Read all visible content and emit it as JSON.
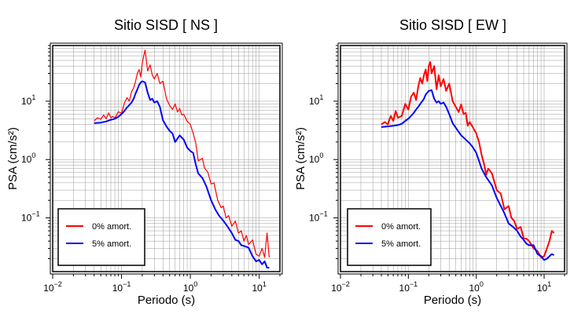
{
  "colors": {
    "no_damping": "#ff0000",
    "damped": "#0000ff",
    "grid": "#999999",
    "frame": "#000000"
  },
  "chart_data": [
    {
      "type": "line",
      "title": "Sitio SISD [ NS ]",
      "xlabel": "Periodo (s)",
      "ylabel": "PSA (cm/s²)",
      "x_scale": "log",
      "y_scale": "log",
      "xlim": [
        0.01,
        20
      ],
      "ylim": [
        0.012,
        90
      ],
      "x_ticks": [
        {
          "value": 0.01,
          "base": "10",
          "exp": "−2"
        },
        {
          "value": 0.1,
          "base": "10",
          "exp": "−1"
        },
        {
          "value": 1,
          "base": "10",
          "exp": "0"
        },
        {
          "value": 10,
          "base": "10",
          "exp": "1"
        }
      ],
      "y_ticks": [
        {
          "value": 0.1,
          "base": "10",
          "exp": "−1"
        },
        {
          "value": 1,
          "base": "10",
          "exp": "0"
        },
        {
          "value": 10,
          "base": "10",
          "exp": "1"
        }
      ],
      "grid": true,
      "legend_position": "bottom-left",
      "series": [
        {
          "name": "0% amort.",
          "color": "#ff0000",
          "x": [
            0.04,
            0.045,
            0.05,
            0.055,
            0.06,
            0.065,
            0.07,
            0.075,
            0.08,
            0.09,
            0.1,
            0.11,
            0.12,
            0.13,
            0.14,
            0.15,
            0.16,
            0.17,
            0.18,
            0.19,
            0.2,
            0.21,
            0.22,
            0.24,
            0.26,
            0.28,
            0.3,
            0.33,
            0.36,
            0.4,
            0.45,
            0.5,
            0.55,
            0.6,
            0.65,
            0.7,
            0.75,
            0.8,
            0.9,
            1.0,
            1.1,
            1.2,
            1.3,
            1.4,
            1.5,
            1.6,
            1.8,
            2.0,
            2.2,
            2.5,
            2.8,
            3.0,
            3.3,
            3.6,
            4.0,
            4.5,
            5.0,
            5.5,
            6.0,
            6.5,
            7.0,
            8.0,
            9.0,
            10.0,
            11.0,
            12.0,
            13.0,
            14.0
          ],
          "y": [
            4.6,
            5.2,
            4.9,
            5.8,
            5.0,
            6.3,
            5.2,
            5.5,
            5.1,
            6.6,
            6.2,
            9.3,
            11.5,
            10.0,
            14.5,
            17.0,
            22.0,
            30.0,
            35.0,
            26.0,
            45.0,
            60.0,
            75.0,
            33.0,
            42.0,
            28.0,
            24.0,
            30.0,
            20.0,
            22.0,
            11.0,
            8.5,
            7.2,
            9.0,
            6.5,
            7.5,
            5.8,
            6.0,
            4.5,
            4.0,
            2.8,
            1.9,
            0.95,
            1.0,
            1.05,
            0.72,
            0.6,
            0.38,
            0.4,
            0.2,
            0.15,
            0.16,
            0.1,
            0.11,
            0.072,
            0.088,
            0.055,
            0.06,
            0.04,
            0.05,
            0.035,
            0.042,
            0.024,
            0.022,
            0.03,
            0.021,
            0.055,
            0.021
          ]
        },
        {
          "name": "5% amort.",
          "color": "#0000ff",
          "x": [
            0.04,
            0.05,
            0.06,
            0.07,
            0.08,
            0.09,
            0.1,
            0.11,
            0.12,
            0.13,
            0.14,
            0.15,
            0.16,
            0.17,
            0.18,
            0.19,
            0.2,
            0.22,
            0.24,
            0.26,
            0.28,
            0.3,
            0.33,
            0.36,
            0.4,
            0.45,
            0.5,
            0.55,
            0.6,
            0.7,
            0.8,
            0.9,
            1.0,
            1.1,
            1.2,
            1.3,
            1.5,
            1.7,
            2.0,
            2.3,
            2.6,
            3.0,
            3.5,
            4.0,
            4.5,
            5.0,
            5.5,
            6.0,
            7.0,
            8.0,
            9.0,
            10.0,
            11.0,
            12.0,
            13.0,
            14.0
          ],
          "y": [
            4.2,
            4.3,
            4.5,
            4.8,
            5.0,
            5.4,
            6.0,
            6.8,
            7.8,
            8.6,
            9.5,
            11.0,
            13.5,
            16.0,
            19.0,
            21.0,
            22.0,
            21.0,
            14.0,
            10.5,
            11.0,
            9.5,
            10.0,
            8.0,
            4.7,
            3.7,
            3.1,
            2.8,
            2.0,
            2.6,
            2.2,
            1.6,
            1.4,
            1.3,
            0.82,
            0.58,
            0.48,
            0.35,
            0.2,
            0.14,
            0.11,
            0.09,
            0.07,
            0.055,
            0.042,
            0.04,
            0.034,
            0.033,
            0.031,
            0.022,
            0.018,
            0.019,
            0.016,
            0.018,
            0.014,
            0.014
          ]
        }
      ]
    },
    {
      "type": "line",
      "title": "Sitio SISD [ EW ]",
      "xlabel": "Periodo (s)",
      "ylabel": "PSA (cm/s²)",
      "x_scale": "log",
      "y_scale": "log",
      "xlim": [
        0.01,
        20
      ],
      "ylim": [
        0.012,
        90
      ],
      "x_ticks": [
        {
          "value": 0.01,
          "base": "10",
          "exp": "−2"
        },
        {
          "value": 0.1,
          "base": "10",
          "exp": "−1"
        },
        {
          "value": 1,
          "base": "10",
          "exp": "0"
        },
        {
          "value": 10,
          "base": "10",
          "exp": "1"
        }
      ],
      "y_ticks": [
        {
          "value": 0.1,
          "base": "10",
          "exp": "−1"
        },
        {
          "value": 1,
          "base": "10",
          "exp": "0"
        },
        {
          "value": 10,
          "base": "10",
          "exp": "1"
        }
      ],
      "grid": true,
      "legend_position": "bottom-left",
      "series": [
        {
          "name": "0% amort.",
          "color": "#ff0000",
          "x": [
            0.04,
            0.045,
            0.05,
            0.055,
            0.06,
            0.065,
            0.07,
            0.08,
            0.09,
            0.1,
            0.11,
            0.12,
            0.13,
            0.14,
            0.15,
            0.16,
            0.17,
            0.18,
            0.19,
            0.2,
            0.21,
            0.22,
            0.24,
            0.26,
            0.28,
            0.3,
            0.33,
            0.36,
            0.4,
            0.45,
            0.5,
            0.55,
            0.6,
            0.65,
            0.7,
            0.75,
            0.8,
            0.9,
            1.0,
            1.1,
            1.2,
            1.3,
            1.4,
            1.5,
            1.7,
            2.0,
            2.3,
            2.6,
            3.0,
            3.3,
            3.6,
            4.0,
            4.5,
            5.0,
            5.5,
            6.0,
            7.0,
            8.0,
            9.0,
            10.0,
            11.0,
            12.0,
            13.0,
            14.0
          ],
          "y": [
            4.0,
            4.4,
            4.0,
            5.6,
            4.6,
            6.8,
            5.2,
            5.6,
            9.0,
            7.2,
            12.0,
            14.0,
            10.5,
            18.0,
            25.0,
            20.0,
            28.0,
            35.0,
            22.0,
            40.0,
            47.0,
            30.0,
            40.0,
            16.0,
            28.0,
            18.0,
            24.0,
            15.0,
            20.0,
            10.0,
            8.0,
            6.5,
            8.8,
            6.0,
            6.3,
            3.8,
            4.4,
            3.5,
            2.8,
            2.0,
            1.2,
            0.85,
            0.55,
            0.7,
            0.58,
            0.3,
            0.26,
            0.14,
            0.16,
            0.1,
            0.09,
            0.065,
            0.07,
            0.045,
            0.044,
            0.04,
            0.03,
            0.027,
            0.021,
            0.022,
            0.03,
            0.04,
            0.06,
            0.055
          ]
        },
        {
          "name": "5% amort.",
          "color": "#0000ff",
          "x": [
            0.04,
            0.05,
            0.06,
            0.07,
            0.08,
            0.09,
            0.1,
            0.11,
            0.12,
            0.13,
            0.14,
            0.15,
            0.16,
            0.17,
            0.18,
            0.19,
            0.2,
            0.22,
            0.24,
            0.26,
            0.28,
            0.3,
            0.33,
            0.36,
            0.4,
            0.45,
            0.5,
            0.6,
            0.7,
            0.8,
            0.9,
            1.0,
            1.1,
            1.2,
            1.4,
            1.7,
            2.0,
            2.3,
            2.6,
            3.0,
            3.5,
            4.0,
            4.5,
            5.0,
            5.5,
            6.0,
            7.0,
            8.0,
            9.0,
            10.0,
            11.0,
            12.0,
            13.0,
            14.0
          ],
          "y": [
            3.6,
            3.7,
            3.8,
            3.9,
            4.1,
            4.6,
            5.0,
            5.6,
            6.3,
            7.2,
            8.0,
            9.0,
            10.0,
            11.0,
            13.0,
            14.0,
            15.0,
            15.5,
            11.0,
            9.5,
            10.0,
            9.0,
            9.5,
            8.0,
            6.0,
            4.2,
            3.5,
            2.6,
            2.2,
            1.9,
            1.6,
            1.3,
            0.95,
            0.7,
            0.5,
            0.36,
            0.22,
            0.16,
            0.12,
            0.08,
            0.07,
            0.06,
            0.048,
            0.042,
            0.036,
            0.034,
            0.034,
            0.024,
            0.022,
            0.019,
            0.02,
            0.022,
            0.024,
            0.023
          ]
        }
      ]
    }
  ]
}
